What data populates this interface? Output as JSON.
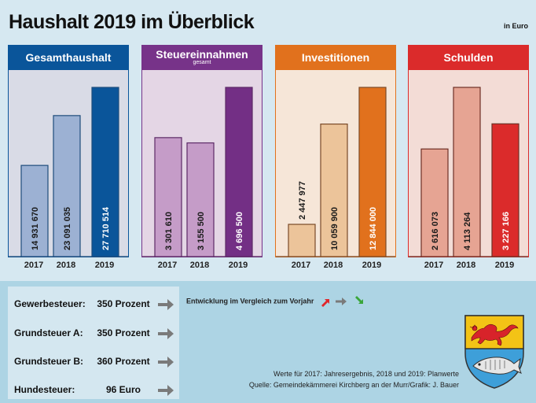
{
  "header": {
    "title": "Haushalt 2019 im Überblick",
    "unit": "in Euro"
  },
  "chart_data": [
    {
      "type": "bar",
      "title": "Gesamthaushalt",
      "subtitle": "",
      "categories": [
        "2017",
        "2018",
        "2019"
      ],
      "values": [
        14931670,
        23091035,
        27710514
      ],
      "labels": [
        "14 931 670",
        "23 091 035",
        "27 710 514"
      ],
      "colors": {
        "header": "#0a559a",
        "body": "#d9dbe6",
        "bar": "#9cb1d3",
        "bar_highlight": "#0a559a",
        "border": "#1f4d7c"
      },
      "xlabel": "",
      "ylabel": "Euro"
    },
    {
      "type": "bar",
      "title": "Steuereinnahmen",
      "subtitle": "gesamt",
      "categories": [
        "2017",
        "2018",
        "2019"
      ],
      "values": [
        3301610,
        3155500,
        4696500
      ],
      "labels": [
        "3 301 610",
        "3 155 500",
        "4 696 500"
      ],
      "colors": {
        "header": "#773389",
        "body": "#e4d6e5",
        "bar": "#c59cc8",
        "bar_highlight": "#732f85",
        "border": "#5c2a66"
      },
      "xlabel": "",
      "ylabel": "Euro"
    },
    {
      "type": "bar",
      "title": "Investitionen",
      "subtitle": "",
      "categories": [
        "2017",
        "2018",
        "2019"
      ],
      "values": [
        2447977,
        10059900,
        12844000
      ],
      "labels": [
        "2 447 977",
        "10 059 900",
        "12 844 000"
      ],
      "colors": {
        "header": "#e1711d",
        "body": "#f6e6d8",
        "bar": "#ecc49a",
        "bar_highlight": "#e1711d",
        "border": "#7a4a28"
      },
      "xlabel": "",
      "ylabel": "Euro"
    },
    {
      "type": "bar",
      "title": "Schulden",
      "subtitle": "",
      "categories": [
        "2017",
        "2018",
        "2019"
      ],
      "values": [
        2616073,
        4113264,
        3227166
      ],
      "labels": [
        "2 616 073",
        "4 113 264",
        "3 227 166"
      ],
      "colors": {
        "header": "#db2b2b",
        "body": "#f3dcd6",
        "bar": "#e6a493",
        "bar_highlight": "#db2b2b",
        "border": "#6e3026"
      },
      "xlabel": "",
      "ylabel": "Euro"
    }
  ],
  "taxes": [
    {
      "label": "Gewerbesteuer:",
      "value": "350 Prozent",
      "trend": "arrow-right-icon"
    },
    {
      "label": "Grundsteuer A:",
      "value": "350 Prozent",
      "trend": "arrow-right-icon"
    },
    {
      "label": "Grundsteuer B:",
      "value": "360 Prozent",
      "trend": "arrow-right-icon"
    },
    {
      "label": "Hundesteuer:",
      "value": "96 Euro",
      "trend": "arrow-right-icon"
    }
  ],
  "legend": {
    "text": "Entwicklung im Vergleich zum Vorjahr",
    "icons": [
      "arrow-up-right-icon",
      "arrow-right-icon",
      "arrow-down-right-icon"
    ],
    "colors": {
      "up": "#e0262b",
      "flat": "#7a7a7a",
      "down": "#3aa63a"
    }
  },
  "notes": {
    "line1": "Werte für 2017: Jahresergebnis, 2018 und 2019: Planwerte",
    "line2": "Quelle: Gemeindekämmerei Kirchberg an der Murr/Grafik: J. Bauer"
  },
  "crest": {
    "name": "coat-of-arms",
    "top_color": "#f3c316",
    "bottom_color": "#3e9fd9",
    "lion_color": "#d8232a"
  }
}
